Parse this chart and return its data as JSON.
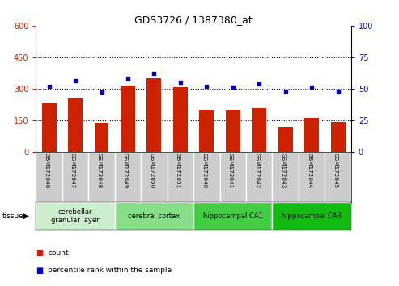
{
  "title": "GDS3726 / 1387380_at",
  "categories": [
    "GSM172046",
    "GSM172047",
    "GSM172048",
    "GSM172049",
    "GSM172050",
    "GSM172051",
    "GSM172040",
    "GSM172041",
    "GSM172042",
    "GSM172043",
    "GSM172044",
    "GSM172045"
  ],
  "count_values": [
    230,
    255,
    138,
    315,
    348,
    308,
    200,
    200,
    205,
    118,
    160,
    142
  ],
  "percentile_values": [
    52,
    56,
    47,
    58,
    62,
    55,
    52,
    51,
    54,
    48,
    51,
    48
  ],
  "bar_color": "#cc2200",
  "dot_color": "#0000bb",
  "left_ylim": [
    0,
    600
  ],
  "right_ylim": [
    0,
    100
  ],
  "left_yticks": [
    0,
    150,
    300,
    450,
    600
  ],
  "right_yticks": [
    0,
    25,
    50,
    75,
    100
  ],
  "left_yticklabels": [
    "0",
    "150",
    "300",
    "450",
    "600"
  ],
  "right_yticklabels": [
    "0",
    "25",
    "50",
    "75",
    "100"
  ],
  "tissue_groups": [
    {
      "label": "cerebellar\ngranular layer",
      "indices": [
        0,
        1,
        2
      ],
      "color": "#cceecc"
    },
    {
      "label": "cerebral cortex",
      "indices": [
        3,
        4,
        5
      ],
      "color": "#88dd88"
    },
    {
      "label": "hippocampal CA1",
      "indices": [
        6,
        7,
        8
      ],
      "color": "#44cc44"
    },
    {
      "label": "hippocampal CA3",
      "indices": [
        9,
        10,
        11
      ],
      "color": "#11bb11"
    }
  ],
  "legend_count_label": "count",
  "legend_pct_label": "percentile rank within the sample",
  "tissue_label": "tissue",
  "tick_area_color": "#cccccc",
  "grid_color": "#000000"
}
